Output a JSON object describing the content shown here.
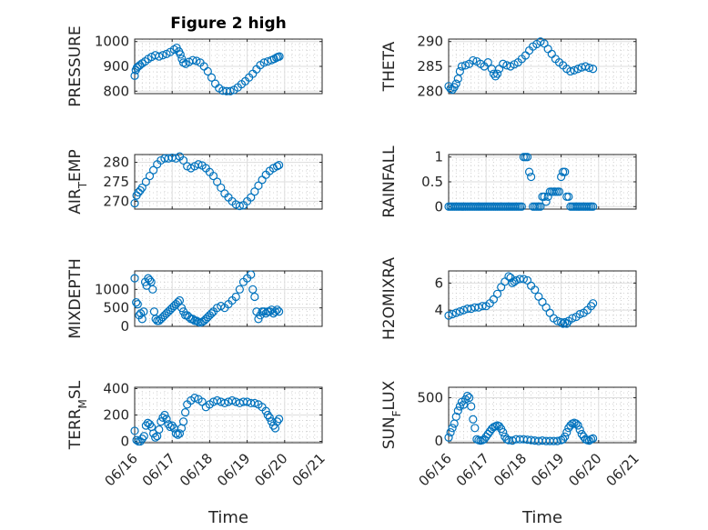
{
  "figure_title": "Figure 2 high",
  "colors": {
    "series": "#0072bd",
    "axis": "#262626",
    "grid": "#dedede"
  },
  "chart_data": [
    {
      "type": "scatter",
      "title": "Figure 2 high",
      "ylabel": "PRESSURE",
      "ylabel_sub": "",
      "xlim": [
        "06/16",
        "06/21"
      ],
      "ylim": [
        790,
        1010
      ],
      "yticks": [
        800,
        900,
        1000
      ],
      "xticks": [],
      "xlabel": "",
      "grid": "on",
      "series": [
        {
          "x": [
            0,
            0.03,
            0.06,
            0.1,
            0.14,
            0.2,
            0.28,
            0.36,
            0.45,
            0.55,
            0.65,
            0.75,
            0.85,
            0.95,
            1.05,
            1.12,
            1.18,
            1.22,
            1.26,
            1.3,
            1.36,
            1.45,
            1.55,
            1.65,
            1.75,
            1.85,
            1.95,
            2.05,
            2.15,
            2.25,
            2.35,
            2.45,
            2.55,
            2.65,
            2.75,
            2.85,
            2.95,
            3.05,
            3.15,
            3.25,
            3.35,
            3.45,
            3.55,
            3.65,
            3.72,
            3.78,
            3.82,
            3.86
          ],
          "y": [
            862,
            885,
            895,
            900,
            905,
            912,
            920,
            930,
            938,
            945,
            940,
            945,
            950,
            958,
            968,
            975,
            960,
            948,
            930,
            915,
            910,
            918,
            925,
            922,
            915,
            900,
            880,
            855,
            830,
            812,
            802,
            800,
            800,
            805,
            815,
            828,
            840,
            855,
            870,
            888,
            905,
            915,
            920,
            925,
            930,
            935,
            938,
            940
          ]
        }
      ]
    },
    {
      "type": "scatter",
      "title": "",
      "ylabel": "THETA",
      "ylabel_sub": "",
      "xlim": [
        "06/16",
        "06/21"
      ],
      "ylim": [
        279.5,
        290.5
      ],
      "yticks": [
        280,
        285,
        290
      ],
      "xticks": [],
      "xlabel": "",
      "grid": "on",
      "series": [
        {
          "x": [
            0,
            0.05,
            0.1,
            0.15,
            0.2,
            0.25,
            0.3,
            0.35,
            0.45,
            0.55,
            0.65,
            0.75,
            0.85,
            0.95,
            1.05,
            1.15,
            1.2,
            1.25,
            1.3,
            1.35,
            1.45,
            1.55,
            1.65,
            1.75,
            1.85,
            1.95,
            2.05,
            2.15,
            2.25,
            2.35,
            2.45,
            2.55,
            2.65,
            2.75,
            2.85,
            2.95,
            3.05,
            3.15,
            3.25,
            3.35,
            3.45,
            3.55,
            3.65,
            3.75,
            3.85
          ],
          "y": [
            281,
            280.5,
            280.3,
            280.8,
            281.5,
            282.5,
            284,
            285,
            285.2,
            285.5,
            286.2,
            286,
            285.5,
            285,
            285.8,
            284.5,
            283.5,
            283,
            283.5,
            284.5,
            285.5,
            285.2,
            285,
            285.4,
            285.8,
            286.5,
            287.2,
            288.2,
            289,
            289.5,
            290,
            289.6,
            288.5,
            287.5,
            286.5,
            285.8,
            285.2,
            284.5,
            284,
            284.2,
            284.5,
            284.8,
            285,
            284.7,
            284.5
          ]
        }
      ]
    },
    {
      "type": "scatter",
      "title": "",
      "ylabel": "AIR",
      "ylabel_sub": "T",
      "ylabel_tail": "EMP",
      "xlim": [
        "06/16",
        "06/21"
      ],
      "ylim": [
        268,
        282
      ],
      "yticks": [
        270,
        275,
        280
      ],
      "xticks": [],
      "xlabel": "",
      "grid": "on",
      "series": [
        {
          "x": [
            0,
            0.05,
            0.1,
            0.15,
            0.2,
            0.3,
            0.4,
            0.5,
            0.6,
            0.7,
            0.8,
            0.9,
            1.0,
            1.1,
            1.2,
            1.3,
            1.4,
            1.5,
            1.6,
            1.7,
            1.8,
            1.9,
            2.0,
            2.1,
            2.2,
            2.3,
            2.4,
            2.5,
            2.6,
            2.7,
            2.8,
            2.9,
            3.0,
            3.1,
            3.2,
            3.3,
            3.4,
            3.5,
            3.6,
            3.7,
            3.8,
            3.85
          ],
          "y": [
            269.5,
            271.5,
            272.3,
            272.8,
            273.5,
            275,
            276.5,
            278,
            279.5,
            280.5,
            281,
            281,
            281.2,
            281,
            281.5,
            280.5,
            279,
            278.5,
            279,
            279.5,
            279.2,
            278.5,
            277.5,
            276.5,
            275,
            273.5,
            272,
            271,
            270,
            269.2,
            268.8,
            269,
            270,
            271,
            272.5,
            274,
            275.5,
            276.8,
            277.8,
            278.5,
            279,
            279.3
          ]
        }
      ]
    },
    {
      "type": "scatter",
      "title": "",
      "ylabel": "RAINFALL",
      "ylabel_sub": "",
      "xlim": [
        "06/16",
        "06/21"
      ],
      "ylim": [
        -0.05,
        1.05
      ],
      "yticks": [
        0,
        0.5,
        1
      ],
      "xticks": [],
      "xlabel": "",
      "grid": "on",
      "series": [
        {
          "x": [
            0,
            0.05,
            0.1,
            0.15,
            0.2,
            0.25,
            0.3,
            0.35,
            0.4,
            0.45,
            0.5,
            0.55,
            0.6,
            0.65,
            0.7,
            0.75,
            0.8,
            0.85,
            0.9,
            0.95,
            1.0,
            1.05,
            1.1,
            1.15,
            1.2,
            1.25,
            1.3,
            1.35,
            1.4,
            1.45,
            1.5,
            1.55,
            1.6,
            1.65,
            1.7,
            1.75,
            1.8,
            1.85,
            1.9,
            1.95,
            2.0,
            2.05,
            2.1,
            2.15,
            2.2,
            2.25,
            2.3,
            2.35,
            2.4,
            2.45,
            2.5,
            2.55,
            2.6,
            2.65,
            2.7,
            2.75,
            2.8,
            2.85,
            2.9,
            2.95,
            3.0,
            3.05,
            3.1,
            3.15,
            3.2,
            3.25,
            3.3,
            3.35,
            3.4,
            3.45,
            3.5,
            3.55,
            3.6,
            3.65,
            3.7,
            3.75,
            3.8,
            3.85
          ],
          "y": [
            0,
            0,
            0,
            0,
            0,
            0,
            0,
            0,
            0,
            0,
            0,
            0,
            0,
            0,
            0,
            0,
            0,
            0,
            0,
            0,
            0,
            0,
            0,
            0,
            0,
            0,
            0,
            0,
            0,
            0,
            0,
            0,
            0,
            0,
            0,
            0,
            0,
            0,
            0,
            0,
            1,
            1,
            1,
            0.7,
            0.6,
            0,
            0,
            0,
            0,
            0,
            0.2,
            0.2,
            0.1,
            0.2,
            0.3,
            0.3,
            0.3,
            0.3,
            0.3,
            0.3,
            0.6,
            0.7,
            0.7,
            0.2,
            0.2,
            0,
            0,
            0,
            0,
            0,
            0,
            0,
            0,
            0,
            0,
            0,
            0,
            0
          ]
        }
      ]
    },
    {
      "type": "scatter",
      "title": "",
      "ylabel": "MIXDEPTH",
      "ylabel_sub": "",
      "xlim": [
        "06/16",
        "06/21"
      ],
      "ylim": [
        0,
        1500
      ],
      "yticks": [
        0,
        500,
        1000
      ],
      "xticks": [],
      "xlabel": "",
      "grid": "on",
      "series": [
        {
          "x": [
            0,
            0.04,
            0.08,
            0.12,
            0.16,
            0.2,
            0.24,
            0.28,
            0.32,
            0.36,
            0.4,
            0.44,
            0.48,
            0.52,
            0.56,
            0.6,
            0.65,
            0.7,
            0.75,
            0.8,
            0.85,
            0.9,
            0.95,
            1.0,
            1.05,
            1.1,
            1.15,
            1.2,
            1.25,
            1.3,
            1.35,
            1.4,
            1.45,
            1.5,
            1.55,
            1.6,
            1.65,
            1.7,
            1.75,
            1.8,
            1.85,
            1.9,
            1.95,
            2.0,
            2.05,
            2.1,
            2.2,
            2.3,
            2.4,
            2.5,
            2.6,
            2.7,
            2.8,
            2.9,
            3.0,
            3.1,
            3.15,
            3.2,
            3.25,
            3.3,
            3.35,
            3.4,
            3.45,
            3.5,
            3.55,
            3.6,
            3.65,
            3.7,
            3.75,
            3.8,
            3.85
          ],
          "y": [
            1300,
            650,
            600,
            300,
            350,
            200,
            400,
            1200,
            1100,
            1300,
            1250,
            1200,
            1000,
            400,
            200,
            150,
            150,
            200,
            250,
            300,
            350,
            400,
            450,
            500,
            550,
            600,
            650,
            700,
            500,
            400,
            300,
            300,
            250,
            200,
            200,
            150,
            150,
            120,
            100,
            120,
            150,
            200,
            250,
            300,
            350,
            400,
            500,
            550,
            500,
            600,
            700,
            800,
            1000,
            1200,
            1300,
            1400,
            1000,
            800,
            400,
            200,
            300,
            400,
            400,
            350,
            400,
            400,
            450,
            350,
            400,
            450,
            400
          ]
        }
      ]
    },
    {
      "type": "scatter",
      "title": "",
      "ylabel": "H2OMIXRA",
      "ylabel_sub": "",
      "xlim": [
        "06/16",
        "06/21"
      ],
      "ylim": [
        2.8,
        6.9
      ],
      "yticks": [
        4,
        6
      ],
      "xticks": [],
      "xlabel": "",
      "grid": "on",
      "series": [
        {
          "x": [
            0,
            0.1,
            0.2,
            0.3,
            0.4,
            0.5,
            0.6,
            0.7,
            0.8,
            0.9,
            1.0,
            1.1,
            1.2,
            1.3,
            1.4,
            1.5,
            1.6,
            1.65,
            1.7,
            1.75,
            1.8,
            1.9,
            2.0,
            2.1,
            2.2,
            2.3,
            2.4,
            2.5,
            2.6,
            2.7,
            2.8,
            2.9,
            3.0,
            3.05,
            3.1,
            3.15,
            3.2,
            3.3,
            3.4,
            3.5,
            3.6,
            3.7,
            3.8,
            3.85
          ],
          "y": [
            3.6,
            3.7,
            3.8,
            3.9,
            4.0,
            4.1,
            4.1,
            4.2,
            4.2,
            4.3,
            4.3,
            4.5,
            4.8,
            5.2,
            5.7,
            6.1,
            6.5,
            6.4,
            6.0,
            6.1,
            6.2,
            6.3,
            6.3,
            6.2,
            5.8,
            5.5,
            5.0,
            4.6,
            4.2,
            3.8,
            3.4,
            3.2,
            3.1,
            3.0,
            3.1,
            3.0,
            3.2,
            3.4,
            3.5,
            3.7,
            3.8,
            4.0,
            4.3,
            4.5
          ]
        }
      ]
    },
    {
      "type": "scatter",
      "title": "",
      "ylabel": "TERR",
      "ylabel_sub": "M",
      "ylabel_tail": "SL",
      "xlim": [
        "06/16",
        "06/21"
      ],
      "ylim": [
        -10,
        410
      ],
      "yticks": [
        0,
        200,
        400
      ],
      "xticks": [
        "06/16",
        "06/17",
        "06/18",
        "06/19",
        "06/20",
        "06/21"
      ],
      "xlabel": "Time",
      "grid": "on",
      "series": [
        {
          "x": [
            0,
            0.05,
            0.1,
            0.15,
            0.2,
            0.25,
            0.3,
            0.35,
            0.4,
            0.45,
            0.5,
            0.55,
            0.6,
            0.65,
            0.7,
            0.75,
            0.8,
            0.85,
            0.9,
            0.95,
            1.0,
            1.05,
            1.1,
            1.15,
            1.2,
            1.25,
            1.3,
            1.35,
            1.4,
            1.5,
            1.6,
            1.7,
            1.8,
            1.9,
            2.0,
            2.1,
            2.2,
            2.3,
            2.4,
            2.5,
            2.6,
            2.7,
            2.8,
            2.9,
            3.0,
            3.1,
            3.2,
            3.3,
            3.4,
            3.5,
            3.55,
            3.6,
            3.65,
            3.7,
            3.75,
            3.8,
            3.85
          ],
          "y": [
            80,
            10,
            0,
            0,
            20,
            40,
            120,
            140,
            130,
            110,
            60,
            30,
            40,
            90,
            150,
            180,
            200,
            170,
            130,
            110,
            120,
            100,
            60,
            50,
            60,
            100,
            150,
            220,
            280,
            310,
            330,
            320,
            300,
            260,
            280,
            300,
            310,
            300,
            290,
            300,
            310,
            300,
            290,
            300,
            300,
            290,
            290,
            280,
            260,
            230,
            200,
            180,
            150,
            120,
            100,
            150,
            170
          ]
        }
      ]
    },
    {
      "type": "scatter",
      "title": "",
      "ylabel": "SUN",
      "ylabel_sub": "F",
      "ylabel_tail": "LUX",
      "xlim": [
        "06/16",
        "06/21"
      ],
      "ylim": [
        -20,
        620
      ],
      "yticks": [
        0,
        500
      ],
      "xticks": [
        "06/16",
        "06/17",
        "06/18",
        "06/19",
        "06/20",
        "06/21"
      ],
      "xlabel": "Time",
      "grid": "on",
      "series": [
        {
          "x": [
            0,
            0.05,
            0.1,
            0.15,
            0.2,
            0.25,
            0.3,
            0.35,
            0.4,
            0.45,
            0.5,
            0.55,
            0.6,
            0.65,
            0.7,
            0.75,
            0.8,
            0.85,
            0.9,
            0.95,
            1.0,
            1.05,
            1.1,
            1.15,
            1.2,
            1.25,
            1.3,
            1.35,
            1.4,
            1.45,
            1.5,
            1.55,
            1.6,
            1.7,
            1.8,
            1.9,
            2.0,
            2.1,
            2.2,
            2.3,
            2.4,
            2.5,
            2.6,
            2.7,
            2.8,
            2.9,
            3.0,
            3.05,
            3.1,
            3.15,
            3.2,
            3.25,
            3.3,
            3.35,
            3.4,
            3.45,
            3.5,
            3.55,
            3.6,
            3.65,
            3.7,
            3.75,
            3.8,
            3.85
          ],
          "y": [
            40,
            100,
            150,
            200,
            280,
            350,
            400,
            450,
            420,
            480,
            520,
            500,
            400,
            250,
            150,
            20,
            10,
            5,
            10,
            20,
            50,
            80,
            110,
            140,
            160,
            170,
            180,
            170,
            140,
            100,
            50,
            20,
            10,
            5,
            20,
            20,
            20,
            15,
            10,
            5,
            0,
            5,
            0,
            0,
            0,
            0,
            10,
            20,
            50,
            100,
            150,
            180,
            200,
            210,
            200,
            180,
            130,
            80,
            50,
            20,
            10,
            5,
            20,
            30
          ]
        }
      ]
    }
  ]
}
